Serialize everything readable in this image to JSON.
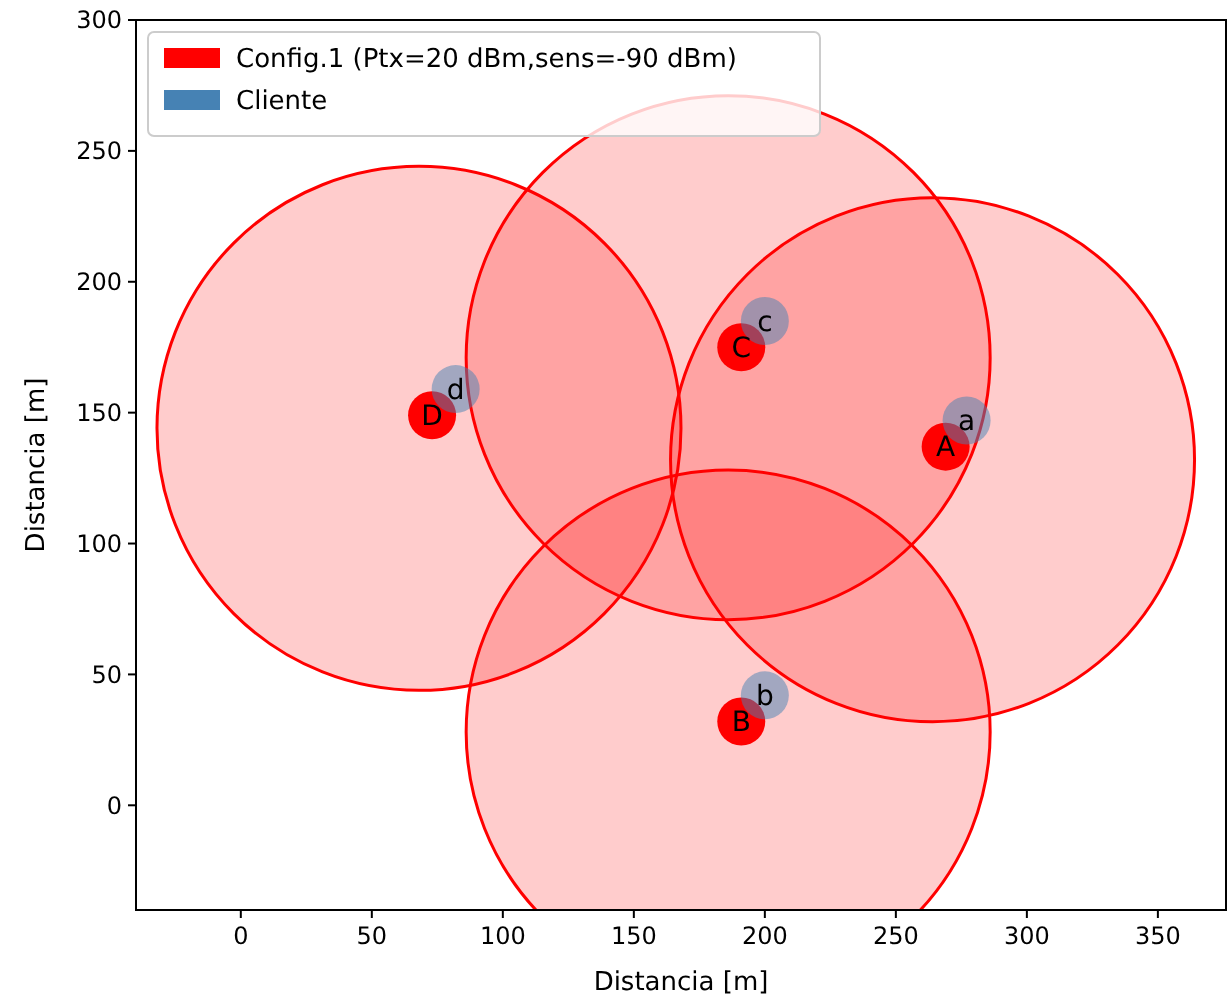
{
  "chart_data": {
    "type": "scatter",
    "xlabel": "Distancia [m]",
    "ylabel": "Distancia [m]",
    "xlim": [
      -40,
      376
    ],
    "ylim": [
      -40,
      300
    ],
    "xticks": [
      0,
      50,
      100,
      150,
      200,
      250,
      300,
      350
    ],
    "yticks": [
      0,
      50,
      100,
      150,
      200,
      250,
      300
    ],
    "legend": "top left",
    "marker": "circle",
    "grid": false,
    "series": [
      {
        "type": "bubble",
        "name": "Config.1 (Ptx=20 dBm,sens=-90 dBm)",
        "color": "#ff0000",
        "x": [
          264,
          186,
          186,
          68
        ],
        "values": [
          132,
          28,
          171,
          144
        ],
        "sizes": [
          1,
          1,
          1,
          1
        ]
      },
      {
        "color": "#ff0000",
        "x": [
          269,
          191,
          191,
          73
        ],
        "values": [
          137,
          32,
          175,
          149
        ]
      },
      {
        "name": "Cliente",
        "color": "#4682b4",
        "x": [
          277,
          200,
          200,
          82
        ],
        "values": [
          147,
          42,
          185,
          159
        ]
      }
    ],
    "annotations": [
      {
        "text": "A",
        "x": 269,
        "y": 137
      },
      {
        "text": "B",
        "x": 191,
        "y": 32
      },
      {
        "text": "C",
        "x": 191,
        "y": 175
      },
      {
        "text": "D",
        "x": 73,
        "y": 149
      },
      {
        "text": "a",
        "x": 277,
        "y": 147
      },
      {
        "text": "b",
        "x": 200,
        "y": 42
      },
      {
        "text": "c",
        "x": 200,
        "y": 185
      },
      {
        "text": "d",
        "x": 82,
        "y": 159
      }
    ]
  }
}
